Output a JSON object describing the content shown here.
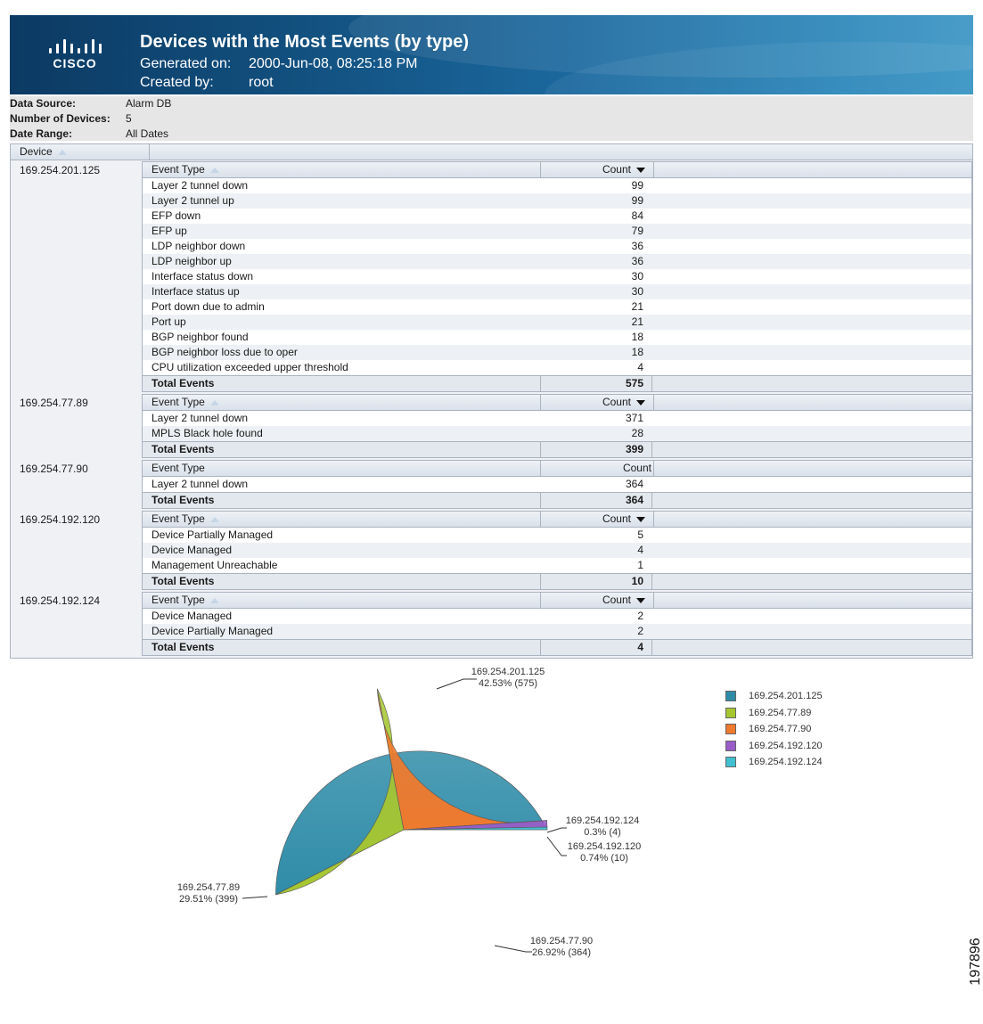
{
  "report": {
    "title": "Devices with the Most Events (by type)",
    "generated_label": "Generated on:",
    "generated_value": "2000-Jun-08, 08:25:18 PM",
    "created_label": "Created by:",
    "created_value": "root",
    "logo_text": "CISCO"
  },
  "info": {
    "data_source_label": "Data Source:",
    "data_source_value": "Alarm DB",
    "num_devices_label": "Number of Devices:",
    "num_devices_value": "5",
    "date_range_label": "Date Range:",
    "date_range_value": "All Dates"
  },
  "grid": {
    "device_header": "Device",
    "event_type_header": "Event Type",
    "count_header": "Count",
    "total_label": "Total Events",
    "devices": [
      {
        "ip": "169.254.201.125",
        "events": [
          {
            "type": "Layer 2 tunnel down",
            "count": "99"
          },
          {
            "type": "Layer 2 tunnel up",
            "count": "99"
          },
          {
            "type": "EFP down",
            "count": "84"
          },
          {
            "type": "EFP up",
            "count": "79"
          },
          {
            "type": "LDP neighbor down",
            "count": "36"
          },
          {
            "type": "LDP neighbor up",
            "count": "36"
          },
          {
            "type": "Interface status down",
            "count": "30"
          },
          {
            "type": "Interface status up",
            "count": "30"
          },
          {
            "type": "Port down due to admin",
            "count": "21"
          },
          {
            "type": "Port up",
            "count": "21"
          },
          {
            "type": "BGP neighbor found",
            "count": "18"
          },
          {
            "type": "BGP neighbor loss due to oper",
            "count": "18"
          },
          {
            "type": "CPU utilization exceeded upper threshold",
            "count": "4"
          }
        ],
        "total": "575"
      },
      {
        "ip": "169.254.77.89",
        "events": [
          {
            "type": "Layer 2 tunnel down",
            "count": "371"
          },
          {
            "type": "MPLS Black hole found",
            "count": "28"
          }
        ],
        "total": "399"
      },
      {
        "ip": "169.254.77.90",
        "events": [
          {
            "type": "Layer 2 tunnel down",
            "count": "364"
          }
        ],
        "total": "364"
      },
      {
        "ip": "169.254.192.120",
        "events": [
          {
            "type": "Device Partially Managed",
            "count": "5"
          },
          {
            "type": "Device Managed",
            "count": "4"
          },
          {
            "type": "Management Unreachable",
            "count": "1"
          }
        ],
        "total": "10"
      },
      {
        "ip": "169.254.192.124",
        "events": [
          {
            "type": "Device Managed",
            "count": "2"
          },
          {
            "type": "Device Partially Managed",
            "count": "2"
          }
        ],
        "total": "4"
      }
    ]
  },
  "chart_data": {
    "type": "pie",
    "categories": [
      "169.254.201.125",
      "169.254.77.89",
      "169.254.77.90",
      "169.254.192.120",
      "169.254.192.124"
    ],
    "values": [
      575,
      399,
      364,
      10,
      4
    ],
    "labels": [
      {
        "name": "169.254.201.125",
        "detail": "42.53% (575)"
      },
      {
        "name": "169.254.77.89",
        "detail": "29.51% (399)"
      },
      {
        "name": "169.254.77.90",
        "detail": "26.92% (364)"
      },
      {
        "name": "169.254.192.120",
        "detail": "0.74% (10)"
      },
      {
        "name": "169.254.192.124",
        "detail": "0.3% (4)"
      }
    ],
    "colors": [
      "#2f8ca8",
      "#a6c630",
      "#ee7a2e",
      "#9a5cc8",
      "#40c0d0"
    ],
    "legend": [
      "169.254.201.125",
      "169.254.77.89",
      "169.254.77.90",
      "169.254.192.120",
      "169.254.192.124"
    ],
    "legend_position": "right"
  },
  "figure_id": "197896"
}
